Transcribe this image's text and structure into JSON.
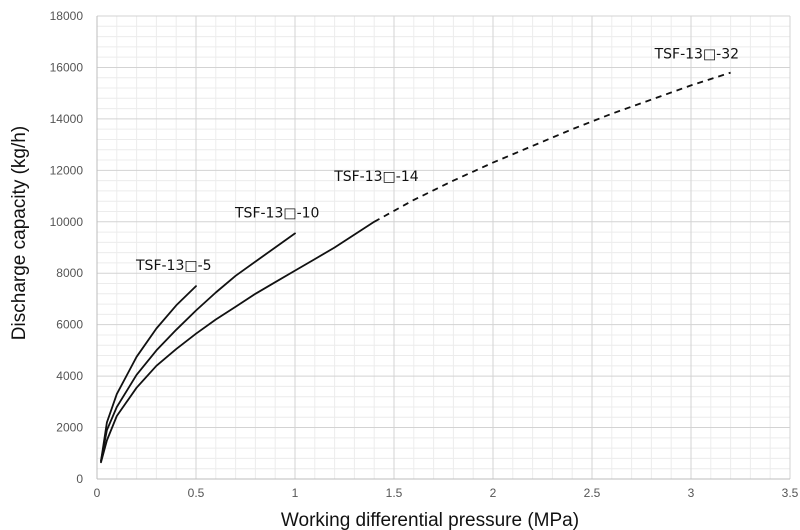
{
  "chart_data": {
    "type": "line",
    "title": "",
    "xlabel": "Working differential pressure (MPa)",
    "ylabel": "Discharge capacity (kg/h)",
    "xlim": [
      0,
      3.5
    ],
    "ylim": [
      0,
      18000
    ],
    "x_ticks": [
      "0",
      "0.5",
      "1",
      "1.5",
      "2",
      "2.5",
      "3",
      "3.5"
    ],
    "y_ticks": [
      "0",
      "2000",
      "4000",
      "6000",
      "8000",
      "10000",
      "12000",
      "14000",
      "16000",
      "18000"
    ],
    "grid": true,
    "minor_grid": true,
    "legend": "none",
    "series": [
      {
        "name": "TSF-13□-5",
        "x": [
          0.02,
          0.05,
          0.1,
          0.2,
          0.3,
          0.4,
          0.5
        ],
        "y": [
          700,
          2200,
          3300,
          4750,
          5850,
          6750,
          7500
        ],
        "style": "solid"
      },
      {
        "name": "TSF-13□-10",
        "x": [
          0.02,
          0.05,
          0.1,
          0.2,
          0.3,
          0.4,
          0.5,
          0.6,
          0.7,
          0.8,
          0.9,
          1.0
        ],
        "y": [
          700,
          1900,
          2800,
          4050,
          5000,
          5800,
          6550,
          7250,
          7900,
          8450,
          9000,
          9550
        ],
        "style": "solid"
      },
      {
        "name": "TSF-13□-14",
        "x": [
          0.02,
          0.05,
          0.1,
          0.2,
          0.3,
          0.4,
          0.5,
          0.6,
          0.7,
          0.8,
          0.9,
          1.0,
          1.1,
          1.2,
          1.3,
          1.4
        ],
        "y": [
          650,
          1500,
          2450,
          3550,
          4400,
          5050,
          5650,
          6200,
          6700,
          7200,
          7650,
          8100,
          8550,
          9000,
          9500,
          10000
        ],
        "style": "solid"
      },
      {
        "name": "TSF-13□-32",
        "x": [
          1.4,
          1.6,
          1.8,
          2.0,
          2.2,
          2.4,
          2.6,
          2.8,
          3.0,
          3.2
        ],
        "y": [
          10000,
          10850,
          11600,
          12300,
          12950,
          13600,
          14200,
          14750,
          15300,
          15800
        ],
        "style": "dashed"
      }
    ],
    "series_label_colors": "#111111"
  }
}
